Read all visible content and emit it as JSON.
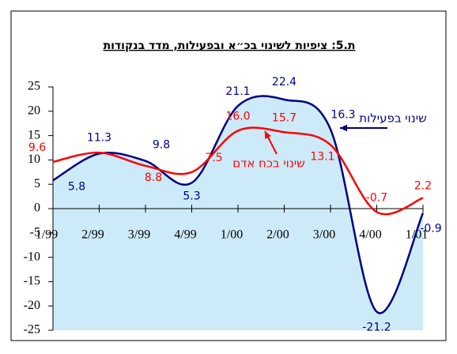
{
  "chart_data": {
    "type": "line",
    "title": "ת.5: ציפיות לשינוי בכ״א ובפעילות, מדד בנקודות",
    "categories": [
      "1/99",
      "2/99",
      "3/99",
      "4/99",
      "1/00",
      "2/00",
      "3/00",
      "4/00",
      "1/01"
    ],
    "series": [
      {
        "name": "שינוי בפעילות",
        "color": "#000080",
        "fill": "#cdeaf9",
        "values": [
          5.8,
          11.3,
          9.8,
          5.3,
          21.1,
          22.4,
          16.3,
          -21.2,
          -0.9
        ],
        "value_labels": [
          "5.8",
          "11.3",
          "9.8",
          "5.3",
          "21.1",
          "22.4",
          "16.3",
          "-21.2",
          "-0.9"
        ]
      },
      {
        "name": "שינוי בכח אדם",
        "color": "#ff0000",
        "values": [
          9.6,
          11.5,
          8.8,
          7.5,
          16.0,
          15.7,
          13.1,
          -0.7,
          2.2
        ],
        "value_labels": [
          "9.6",
          null,
          "8.8",
          "7.5",
          "16.0",
          "15.7",
          "13.1",
          "-0.7",
          "2.2"
        ]
      }
    ],
    "ylim": [
      -25,
      25
    ],
    "yticks": [
      -25,
      -20,
      -15,
      -10,
      -5,
      0,
      5,
      10,
      15,
      20,
      25
    ]
  }
}
